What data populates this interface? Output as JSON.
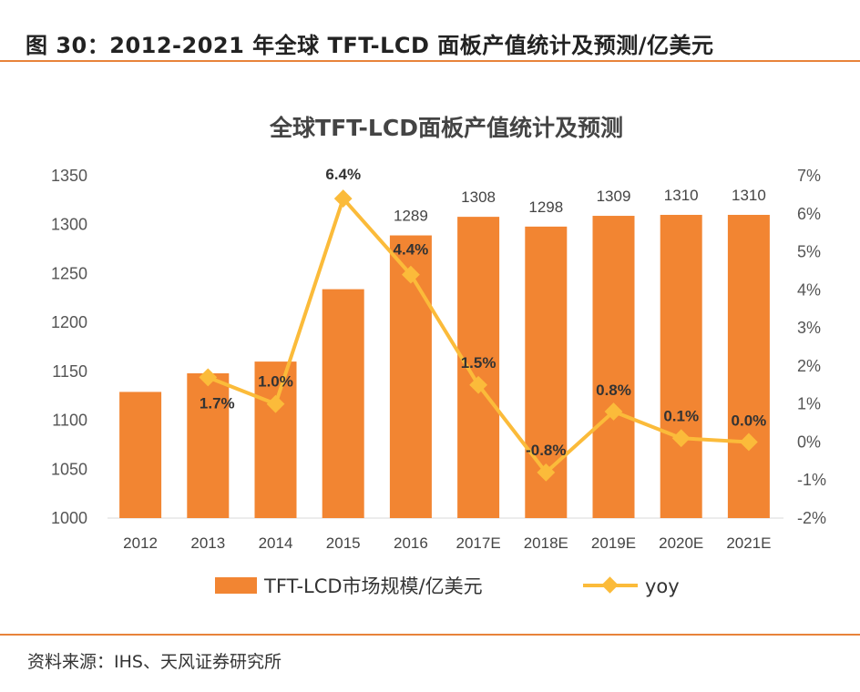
{
  "figure_title": "图 30：2012-2021 年全球 TFT-LCD 面板产值统计及预测/亿美元",
  "source": "资料来源：IHS、天风证券研究所",
  "colors": {
    "bar": "#F28532",
    "line": "#FBBB3A",
    "rule": "#E8833A"
  },
  "chart_data": {
    "type": "bar+line",
    "title": "全球TFT-LCD面板产值统计及预测",
    "categories": [
      "2012",
      "2013",
      "2014",
      "2015",
      "2016",
      "2017E",
      "2018E",
      "2019E",
      "2020E",
      "2021E"
    ],
    "series": [
      {
        "name": "TFT-LCD市场规模/亿美元",
        "type": "bar",
        "axis": "left",
        "values": [
          1129,
          1148,
          1160,
          1234,
          1289,
          1308,
          1298,
          1309,
          1310,
          1310
        ],
        "data_labels": [
          "",
          "",
          "",
          "",
          "1289",
          "1308",
          "1298",
          "1309",
          "1310",
          "1310"
        ]
      },
      {
        "name": "yoy",
        "type": "line",
        "axis": "right",
        "values": [
          null,
          1.7,
          1.0,
          6.4,
          4.4,
          1.5,
          -0.8,
          0.8,
          0.1,
          0.0
        ],
        "data_labels": [
          "",
          "1.7%",
          "1.0%",
          "6.4%",
          "4.4%",
          "1.5%",
          "-0.8%",
          "0.8%",
          "0.1%",
          "0.0%"
        ]
      }
    ],
    "left_axis": {
      "ylim": [
        1000,
        1350
      ],
      "ticks": [
        "1000",
        "1050",
        "1100",
        "1150",
        "1200",
        "1250",
        "1300",
        "1350"
      ]
    },
    "right_axis": {
      "ylim": [
        -2,
        7
      ],
      "ticks": [
        "-2%",
        "-1%",
        "0%",
        "1%",
        "2%",
        "3%",
        "4%",
        "5%",
        "6%",
        "7%"
      ]
    },
    "grid": false,
    "legend_position": "bottom"
  }
}
